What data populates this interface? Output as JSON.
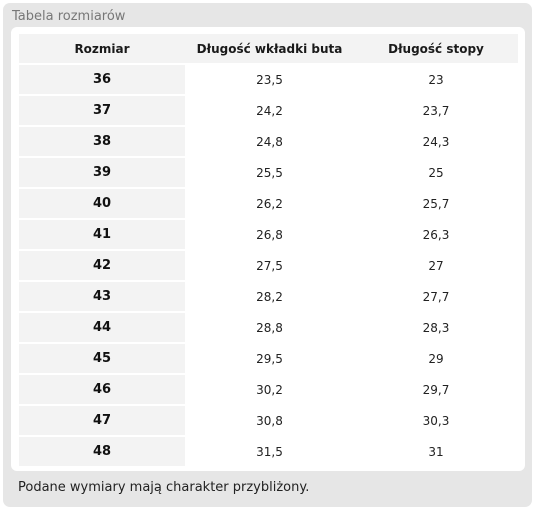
{
  "panel": {
    "title": "Tabela rozmiarów",
    "note": "Podane wymiary mają charakter przybliżony."
  },
  "table": {
    "headers": [
      "Rozmiar",
      "Długość wkładki buta",
      "Długość stopy"
    ],
    "rows": [
      [
        "36",
        "23,5",
        "23"
      ],
      [
        "37",
        "24,2",
        "23,7"
      ],
      [
        "38",
        "24,8",
        "24,3"
      ],
      [
        "39",
        "25,5",
        "25"
      ],
      [
        "40",
        "26,2",
        "25,7"
      ],
      [
        "41",
        "26,8",
        "26,3"
      ],
      [
        "42",
        "27,5",
        "27"
      ],
      [
        "43",
        "28,2",
        "27,7"
      ],
      [
        "44",
        "28,8",
        "28,3"
      ],
      [
        "45",
        "29,5",
        "29"
      ],
      [
        "46",
        "30,2",
        "29,7"
      ],
      [
        "47",
        "30,8",
        "30,3"
      ],
      [
        "48",
        "31,5",
        "31"
      ]
    ]
  }
}
